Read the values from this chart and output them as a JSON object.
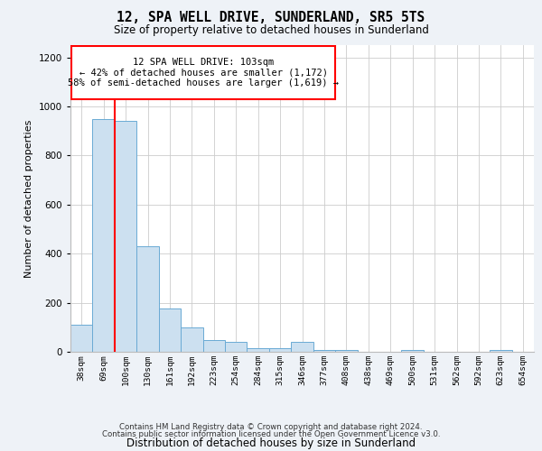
{
  "title": "12, SPA WELL DRIVE, SUNDERLAND, SR5 5TS",
  "subtitle": "Size of property relative to detached houses in Sunderland",
  "xlabel": "Distribution of detached houses by size in Sunderland",
  "ylabel": "Number of detached properties",
  "bar_color": "#cce0f0",
  "bar_edge_color": "#6aaad4",
  "annotation_line1": "12 SPA WELL DRIVE: 103sqm",
  "annotation_line2": "← 42% of detached houses are smaller (1,172)",
  "annotation_line3": "58% of semi-detached houses are larger (1,619) →",
  "annotation_box_color": "white",
  "annotation_box_edge_color": "red",
  "vline_color": "red",
  "categories": [
    "38sqm",
    "69sqm",
    "100sqm",
    "130sqm",
    "161sqm",
    "192sqm",
    "223sqm",
    "254sqm",
    "284sqm",
    "315sqm",
    "346sqm",
    "377sqm",
    "408sqm",
    "438sqm",
    "469sqm",
    "500sqm",
    "531sqm",
    "562sqm",
    "592sqm",
    "623sqm",
    "654sqm"
  ],
  "values": [
    112,
    950,
    940,
    430,
    178,
    100,
    47,
    40,
    14,
    14,
    40,
    8,
    8,
    0,
    0,
    8,
    0,
    0,
    0,
    8,
    0
  ],
  "ylim": [
    0,
    1250
  ],
  "yticks": [
    0,
    200,
    400,
    600,
    800,
    1000,
    1200
  ],
  "bg_color": "#eef2f7",
  "plot_bg_color": "white",
  "footer_line1": "Contains HM Land Registry data © Crown copyright and database right 2024.",
  "footer_line2": "Contains public sector information licensed under the Open Government Licence v3.0.",
  "figsize": [
    6.0,
    5.0
  ],
  "dpi": 100
}
